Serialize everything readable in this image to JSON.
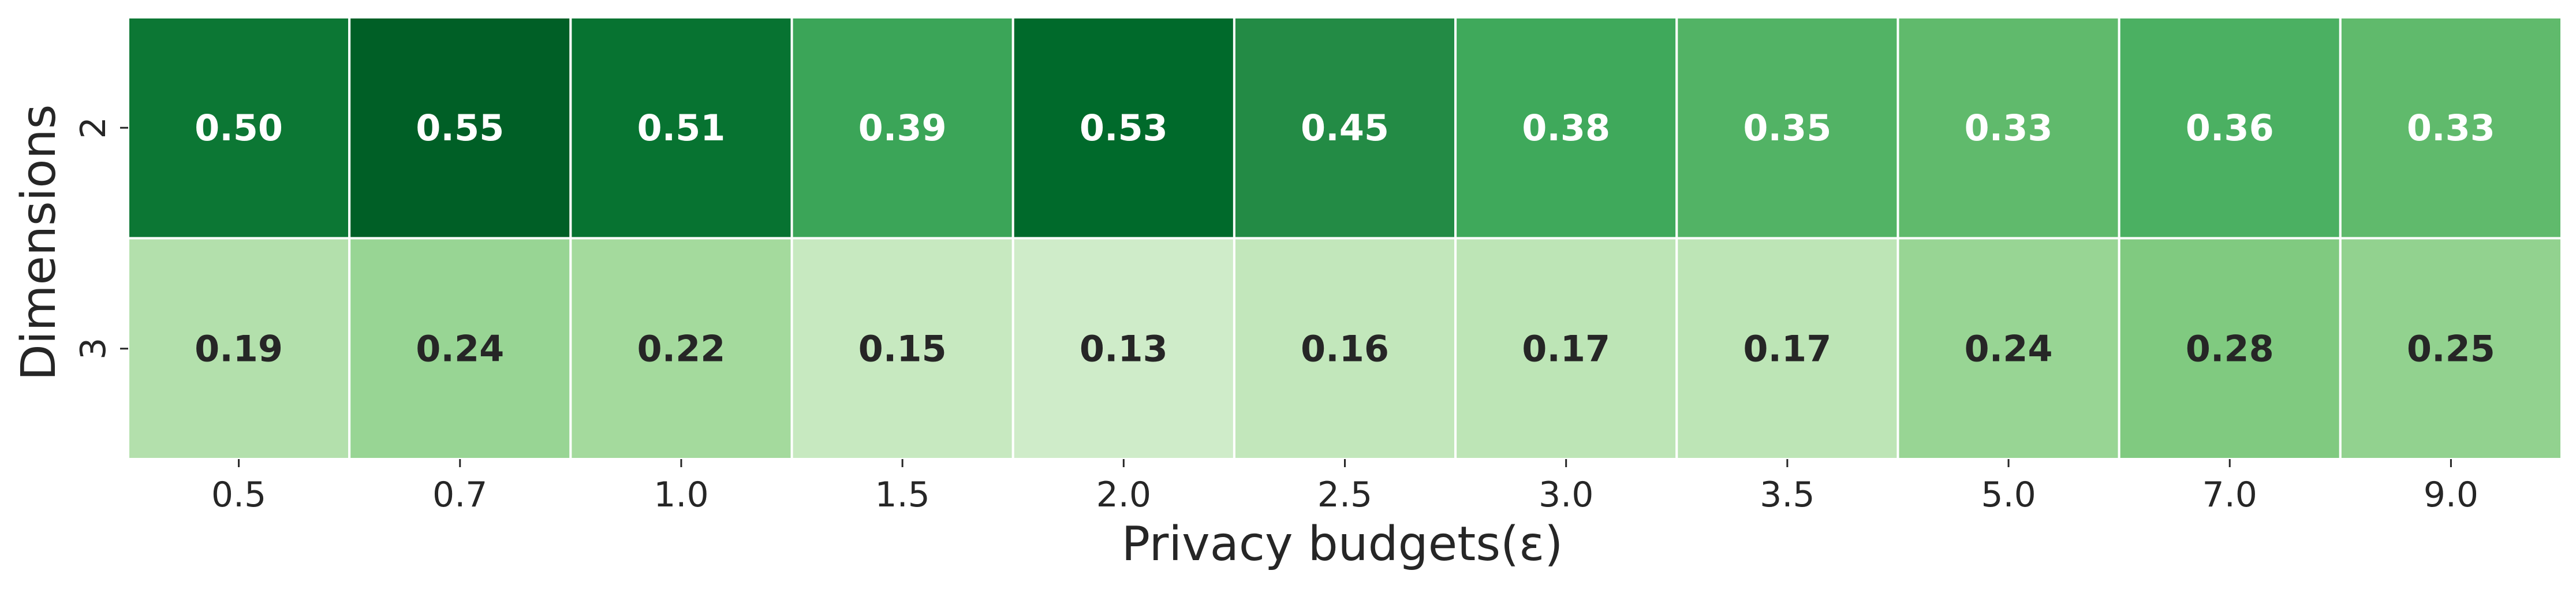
{
  "chart_data": {
    "type": "heatmap",
    "title": "",
    "xlabel": "Privacy budgets(ε)",
    "ylabel": "Dimensions",
    "x_categories": [
      "0.5",
      "0.7",
      "1.0",
      "1.5",
      "2.0",
      "2.5",
      "3.0",
      "3.5",
      "5.0",
      "7.0",
      "9.0"
    ],
    "y_categories": [
      "2",
      "3"
    ],
    "values": [
      [
        0.5,
        0.55,
        0.51,
        0.39,
        0.53,
        0.45,
        0.38,
        0.35,
        0.33,
        0.36,
        0.33
      ],
      [
        0.19,
        0.24,
        0.22,
        0.15,
        0.13,
        0.16,
        0.17,
        0.17,
        0.24,
        0.28,
        0.25
      ]
    ],
    "value_format": "0.00",
    "colormap": "Greens",
    "color_range": [
      0.0,
      0.6
    ],
    "colorbar": false,
    "cell_border_color": "#ffffff",
    "label_text_dark": "#262626",
    "label_text_light": "#ffffff"
  }
}
